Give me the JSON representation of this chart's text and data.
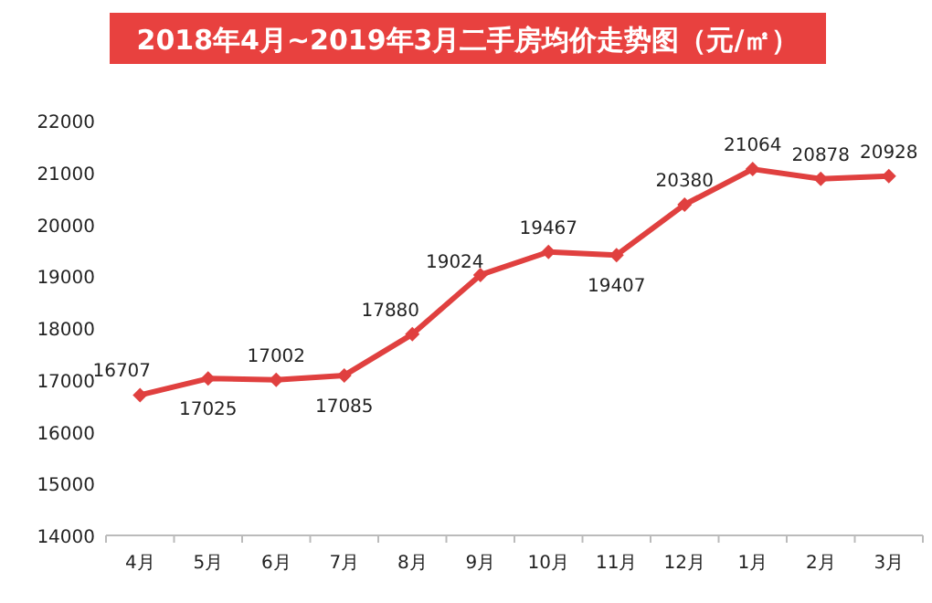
{
  "chart_data": {
    "type": "line",
    "title": "2018年4月~2019年3月二手房均价走势图（元/㎡）",
    "categories": [
      "4月",
      "5月",
      "6月",
      "7月",
      "8月",
      "9月",
      "10月",
      "11月",
      "12月",
      "1月",
      "2月",
      "3月"
    ],
    "series": [
      {
        "color": "#e0403f",
        "values": [
          16707,
          17025,
          17002,
          17085,
          17880,
          19024,
          19467,
          19407,
          20380,
          21064,
          20878,
          20928
        ]
      }
    ],
    "ylim": [
      14000,
      22000
    ],
    "yticks": [
      14000,
      15000,
      16000,
      17000,
      18000,
      19000,
      20000,
      21000,
      22000
    ],
    "data_labels": true,
    "marker": "diamond",
    "grid": false
  }
}
